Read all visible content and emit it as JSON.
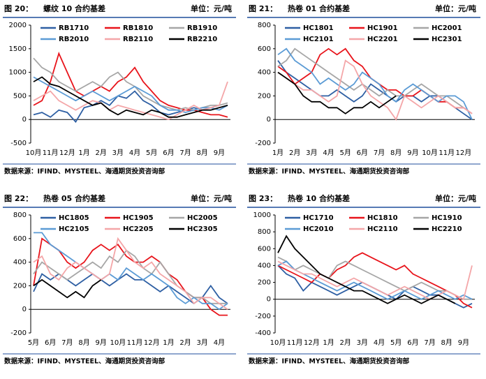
{
  "chart_data": [
    {
      "type": "line",
      "figure": "图 20：",
      "title": "螺纹 10 合约基差",
      "unit": "单位：元/吨",
      "source": "数据来源：IFIND、MYSTEEL、海通期货投资咨询部",
      "categories": [
        "10月",
        null,
        "11月",
        null,
        "12月",
        null,
        "1月",
        null,
        "2月",
        null,
        "3月",
        null,
        "4月",
        null,
        "5月",
        null,
        "6月",
        null,
        "7月",
        null,
        "8月",
        null,
        "9月",
        null
      ],
      "ylim": [
        -500,
        2000
      ],
      "yticks": [
        -500,
        0,
        500,
        1000,
        1500,
        2000
      ],
      "series": [
        {
          "name": "RB1710",
          "color": "#2e5fa3",
          "values": [
            100,
            150,
            50,
            200,
            150,
            -50,
            250,
            300,
            400,
            300,
            500,
            450,
            600,
            400,
            300,
            150,
            100,
            150,
            200,
            250,
            200,
            250,
            300,
            null
          ]
        },
        {
          "name": "RB1810",
          "color": "#e8141b",
          "values": [
            300,
            400,
            800,
            1400,
            1000,
            600,
            500,
            600,
            700,
            600,
            800,
            900,
            1100,
            800,
            600,
            400,
            300,
            250,
            200,
            200,
            150,
            100,
            100,
            50
          ]
        },
        {
          "name": "RB1910",
          "color": "#a6a6a6",
          "values": [
            1300,
            1100,
            1000,
            800,
            700,
            600,
            700,
            800,
            700,
            900,
            1000,
            800,
            700,
            500,
            400,
            300,
            250,
            200,
            250,
            200,
            250,
            300,
            300,
            350
          ]
        },
        {
          "name": "RB2010",
          "color": "#5b9bd5",
          "values": [
            900,
            800,
            700,
            600,
            500,
            400,
            500,
            600,
            500,
            400,
            500,
            600,
            700,
            600,
            500,
            300,
            200,
            200,
            150,
            200,
            250,
            250,
            200,
            300
          ]
        },
        {
          "name": "RB2110",
          "color": "#f4a6a8",
          "values": [
            400,
            500,
            600,
            400,
            300,
            200,
            300,
            400,
            350,
            200,
            300,
            250,
            200,
            150,
            100,
            50,
            0,
            100,
            200,
            300,
            200,
            250,
            300,
            800
          ]
        },
        {
          "name": "RB2210",
          "color": "#000000",
          "values": [
            800,
            900,
            750,
            700,
            600,
            500,
            400,
            300,
            350,
            200,
            100,
            200,
            150,
            100,
            200,
            150,
            50,
            50,
            100,
            150,
            200,
            200,
            250,
            300
          ]
        }
      ]
    },
    {
      "type": "line",
      "figure": "图 21：",
      "title": "热卷 01 合约基差",
      "unit": "单位：元/吨",
      "source": "数据来源：IFIND、MYSTEEL、海通期货投资咨询部",
      "categories": [
        "1月",
        null,
        "2月",
        null,
        "3月",
        null,
        "4月",
        null,
        "5月",
        null,
        "6月",
        null,
        "7月",
        null,
        "8月",
        null,
        "9月",
        null,
        "10月",
        null,
        "11月",
        null,
        "12月",
        null
      ],
      "ylim": [
        -200,
        800
      ],
      "yticks": [
        -200,
        0,
        200,
        400,
        600,
        800
      ],
      "series": [
        {
          "name": "HC1801",
          "color": "#2e5fa3",
          "values": [
            500,
            400,
            350,
            300,
            250,
            200,
            200,
            250,
            200,
            150,
            200,
            300,
            250,
            200,
            150,
            200,
            200,
            150,
            200,
            200,
            150,
            100,
            50,
            0
          ]
        },
        {
          "name": "HC1901",
          "color": "#e8141b",
          "values": [
            450,
            400,
            300,
            350,
            400,
            550,
            600,
            550,
            600,
            500,
            450,
            350,
            300,
            250,
            250,
            200,
            200,
            250,
            200,
            150,
            150,
            100,
            100,
            50
          ]
        },
        {
          "name": "HC2001",
          "color": "#a6a6a6",
          "values": [
            450,
            500,
            600,
            550,
            500,
            450,
            400,
            350,
            300,
            250,
            300,
            250,
            200,
            250,
            200,
            200,
            250,
            300,
            250,
            200,
            200,
            150,
            100,
            50
          ]
        },
        {
          "name": "HC2101",
          "color": "#5b9bd5",
          "values": [
            550,
            600,
            500,
            450,
            400,
            300,
            350,
            300,
            250,
            300,
            400,
            350,
            300,
            200,
            150,
            250,
            300,
            250,
            200,
            150,
            200,
            200,
            150,
            0
          ]
        },
        {
          "name": "HC2201",
          "color": "#f4a6a8",
          "values": [
            400,
            350,
            300,
            250,
            250,
            200,
            150,
            200,
            500,
            450,
            300,
            200,
            150,
            100,
            0,
            200,
            150,
            100,
            150,
            200,
            150,
            100,
            100,
            50
          ]
        },
        {
          "name": "HC2301",
          "color": "#000000",
          "values": [
            400,
            350,
            300,
            200,
            150,
            150,
            100,
            100,
            50,
            100,
            100,
            150,
            100,
            150,
            200,
            null,
            null,
            null,
            null,
            null,
            null,
            null,
            null,
            null
          ]
        }
      ]
    },
    {
      "type": "line",
      "figure": "图 22：",
      "title": "热卷 05 合约基差",
      "unit": "单位：元/吨",
      "source": "数据来源：IFIND、MYSTEEL、海通期货投资咨询部",
      "categories": [
        "5月",
        null,
        "6月",
        null,
        "7月",
        null,
        "8月",
        null,
        "9月",
        null,
        "10月",
        null,
        "11月",
        null,
        "12月",
        null,
        "1月",
        null,
        "2月",
        null,
        "3月",
        null,
        "4月",
        null
      ],
      "ylim": [
        -200,
        800
      ],
      "yticks": [
        -200,
        0,
        200,
        400,
        600,
        800
      ],
      "series": [
        {
          "name": "HC1805",
          "color": "#2e5fa3",
          "values": [
            150,
            300,
            250,
            300,
            250,
            200,
            250,
            300,
            250,
            200,
            250,
            300,
            250,
            250,
            200,
            150,
            200,
            150,
            100,
            50,
            100,
            200,
            100,
            50
          ]
        },
        {
          "name": "HC1905",
          "color": "#e8141b",
          "values": [
            200,
            600,
            550,
            500,
            400,
            350,
            400,
            500,
            550,
            500,
            550,
            450,
            400,
            400,
            450,
            400,
            300,
            250,
            150,
            100,
            100,
            0,
            -50,
            -50
          ]
        },
        {
          "name": "HC2005",
          "color": "#a6a6a6",
          "values": [
            300,
            400,
            350,
            300,
            250,
            300,
            350,
            400,
            350,
            450,
            400,
            500,
            450,
            350,
            300,
            400,
            300,
            200,
            150,
            100,
            100,
            50,
            50,
            50
          ]
        },
        {
          "name": "HC2105",
          "color": "#5b9bd5",
          "values": [
            650,
            650,
            550,
            500,
            450,
            400,
            350,
            300,
            250,
            300,
            250,
            350,
            300,
            250,
            300,
            250,
            200,
            100,
            50,
            100,
            50,
            50,
            0,
            50
          ]
        },
        {
          "name": "HC2205",
          "color": "#f4a6a8",
          "values": [
            400,
            450,
            300,
            250,
            350,
            400,
            350,
            300,
            250,
            300,
            600,
            500,
            400,
            350,
            400,
            300,
            250,
            200,
            150,
            50,
            100,
            100,
            50,
            0
          ]
        },
        {
          "name": "HC2305",
          "color": "#000000",
          "values": [
            200,
            250,
            200,
            150,
            100,
            150,
            100,
            200,
            250,
            null,
            null,
            null,
            null,
            null,
            null,
            null,
            null,
            null,
            null,
            null,
            null,
            null,
            null,
            null
          ]
        }
      ]
    },
    {
      "type": "line",
      "figure": "图 23：",
      "title": "热卷 10 合约基差",
      "unit": "单位：元/吨",
      "source": "数据来源：IFIND、MYSTEEL、海通期货投资咨询部",
      "categories": [
        "10月",
        null,
        "11月",
        null,
        "12月",
        null,
        "1月",
        null,
        "2月",
        null,
        "3月",
        null,
        "4月",
        null,
        "5月",
        null,
        "6月",
        null,
        "7月",
        null,
        "8月",
        null,
        "9月",
        null
      ],
      "ylim": [
        -400,
        1000
      ],
      "yticks": [
        -400,
        -200,
        0,
        200,
        400,
        600,
        800,
        1000
      ],
      "series": [
        {
          "name": "HC1710",
          "color": "#2e5fa3",
          "values": [
            400,
            300,
            250,
            100,
            200,
            150,
            100,
            50,
            100,
            150,
            200,
            150,
            100,
            50,
            0,
            100,
            150,
            100,
            50,
            50,
            0,
            -50,
            -100,
            -50
          ]
        },
        {
          "name": "HC1810",
          "color": "#e8141b",
          "values": [
            400,
            350,
            300,
            250,
            200,
            300,
            250,
            350,
            400,
            500,
            550,
            500,
            450,
            400,
            350,
            400,
            300,
            250,
            200,
            150,
            100,
            50,
            -50,
            -100
          ]
        },
        {
          "name": "HC1910",
          "color": "#a6a6a6",
          "values": [
            500,
            450,
            350,
            400,
            350,
            300,
            250,
            400,
            450,
            400,
            350,
            300,
            250,
            200,
            150,
            100,
            150,
            200,
            150,
            100,
            100,
            50,
            0,
            0
          ]
        },
        {
          "name": "HC2010",
          "color": "#5b9bd5",
          "values": [
            400,
            450,
            350,
            300,
            250,
            200,
            150,
            100,
            150,
            200,
            150,
            100,
            50,
            0,
            50,
            100,
            50,
            0,
            50,
            100,
            50,
            0,
            50,
            0
          ]
        },
        {
          "name": "HC2110",
          "color": "#f4a6a8",
          "values": [
            450,
            400,
            350,
            300,
            300,
            250,
            200,
            150,
            200,
            250,
            200,
            150,
            100,
            50,
            100,
            150,
            100,
            50,
            0,
            50,
            100,
            50,
            0,
            400
          ]
        },
        {
          "name": "HC2210",
          "color": "#000000",
          "values": [
            550,
            750,
            600,
            500,
            400,
            300,
            250,
            200,
            150,
            100,
            100,
            50,
            0,
            -50,
            0,
            50,
            0,
            -50,
            0,
            50,
            0,
            -50,
            null,
            null
          ]
        }
      ]
    }
  ]
}
